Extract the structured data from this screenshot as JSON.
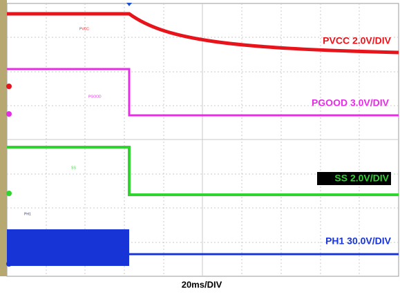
{
  "scope": {
    "channels": [
      {
        "label": "PVCC 2.0V/DIV",
        "tag": "PVCC"
      },
      {
        "label": "PGOOD 3.0V/DIV",
        "tag": "PGOOD"
      },
      {
        "label": "SS 2.0V/DIV",
        "tag": "SS"
      },
      {
        "label": "PH1 30.0V/DIV",
        "tag": "PH1"
      }
    ],
    "timebase": "20ms/DIV"
  }
}
